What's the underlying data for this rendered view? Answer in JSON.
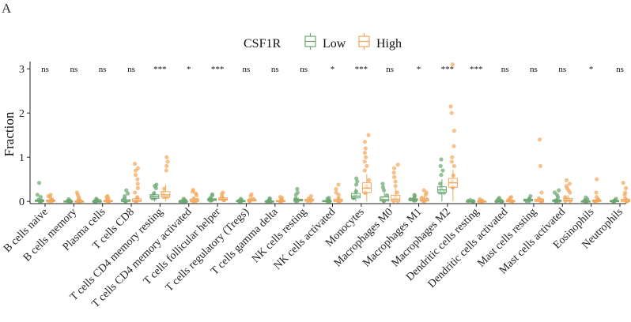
{
  "chart_data": {
    "type": "boxplot",
    "panel_label": "A",
    "legend": {
      "title": "CSF1R",
      "position": "top",
      "entries": [
        {
          "name": "Low",
          "color": "#6aa56e"
        },
        {
          "name": "High",
          "color": "#f2a65a"
        }
      ]
    },
    "ylabel": "Fraction",
    "xlabel": "",
    "ylim": [
      -0.05,
      3.2
    ],
    "yticks": [
      0,
      1,
      2,
      3
    ],
    "categories": [
      "B cells naive",
      "B cells memory",
      "Plasma cells",
      "T cells CD8",
      "T cells CD4 memory resting",
      "T cells CD4 memory activated",
      "T cells follicular helper",
      "T cells regulatory (Tregs)",
      "T cells gamma delta",
      "NK cells resting",
      "NK cells activated",
      "Monocytes",
      "Macrophages M0",
      "Macrophages M1",
      "Macrophages M2",
      "Dendritic cells resting",
      "Dendritic cells activated",
      "Mast cells resting",
      "Mast cells activated",
      "Eosinophils",
      "Neutrophils"
    ],
    "significance": [
      "ns",
      "ns",
      "ns",
      "ns",
      "***",
      "*",
      "***",
      "ns",
      "ns",
      "ns",
      "*",
      "***",
      "ns",
      "*",
      "***",
      "***",
      "ns",
      "ns",
      "ns",
      "*",
      "ns"
    ],
    "series": [
      {
        "name": "Low",
        "color": "#6aa56e",
        "boxes": [
          {
            "q1": 0.0,
            "median": 0.01,
            "q3": 0.03,
            "whisker_high": 0.06,
            "outliers": [
              0.1,
              0.15,
              0.42
            ]
          },
          {
            "q1": 0.0,
            "median": 0.0,
            "q3": 0.01,
            "whisker_high": 0.03,
            "outliers": [
              0.05
            ]
          },
          {
            "q1": 0.0,
            "median": 0.0,
            "q3": 0.01,
            "whisker_high": 0.02,
            "outliers": [
              0.04,
              0.06
            ]
          },
          {
            "q1": 0.0,
            "median": 0.01,
            "q3": 0.04,
            "whisker_high": 0.09,
            "outliers": [
              0.12,
              0.18,
              0.25
            ]
          },
          {
            "q1": 0.07,
            "median": 0.11,
            "q3": 0.15,
            "whisker_high": 0.24,
            "outliers": [
              0.3,
              0.35,
              0.38
            ]
          },
          {
            "q1": 0.0,
            "median": 0.0,
            "q3": 0.01,
            "whisker_high": 0.02,
            "outliers": [
              0.04,
              0.06
            ]
          },
          {
            "q1": 0.02,
            "median": 0.04,
            "q3": 0.06,
            "whisker_high": 0.1,
            "outliers": [
              0.13,
              0.16
            ]
          },
          {
            "q1": 0.0,
            "median": 0.01,
            "q3": 0.02,
            "whisker_high": 0.04,
            "outliers": [
              0.06
            ]
          },
          {
            "q1": 0.0,
            "median": 0.0,
            "q3": 0.01,
            "whisker_high": 0.03,
            "outliers": [
              0.05,
              0.07
            ]
          },
          {
            "q1": 0.01,
            "median": 0.03,
            "q3": 0.05,
            "whisker_high": 0.09,
            "outliers": [
              0.15,
              0.2,
              0.28
            ]
          },
          {
            "q1": 0.0,
            "median": 0.01,
            "q3": 0.02,
            "whisker_high": 0.04,
            "outliers": [
              0.06,
              0.08
            ]
          },
          {
            "q1": 0.08,
            "median": 0.12,
            "q3": 0.18,
            "whisker_high": 0.3,
            "outliers": [
              0.38,
              0.45,
              0.52
            ]
          },
          {
            "q1": 0.01,
            "median": 0.04,
            "q3": 0.1,
            "whisker_high": 0.2,
            "outliers": [
              0.25,
              0.32,
              0.4
            ]
          },
          {
            "q1": 0.02,
            "median": 0.04,
            "q3": 0.06,
            "whisker_high": 0.1,
            "outliers": [
              0.12,
              0.15
            ]
          },
          {
            "q1": 0.2,
            "median": 0.26,
            "q3": 0.33,
            "whisker_high": 0.5,
            "outliers": [
              0.6,
              0.7,
              0.8,
              0.95
            ]
          },
          {
            "q1": 0.0,
            "median": 0.0,
            "q3": 0.01,
            "whisker_high": 0.02,
            "outliers": [
              0.03
            ]
          },
          {
            "q1": 0.0,
            "median": 0.0,
            "q3": 0.01,
            "whisker_high": 0.03,
            "outliers": [
              0.05,
              0.08
            ]
          },
          {
            "q1": 0.01,
            "median": 0.03,
            "q3": 0.05,
            "whisker_high": 0.09,
            "outliers": [
              0.12
            ]
          },
          {
            "q1": 0.0,
            "median": 0.01,
            "q3": 0.03,
            "whisker_high": 0.06,
            "outliers": [
              0.1,
              0.15,
              0.2,
              0.25
            ]
          },
          {
            "q1": 0.0,
            "median": 0.0,
            "q3": 0.01,
            "whisker_high": 0.03,
            "outliers": [
              0.05,
              0.09
            ]
          },
          {
            "q1": 0.0,
            "median": 0.01,
            "q3": 0.02,
            "whisker_high": 0.04,
            "outliers": [
              0.06
            ]
          }
        ]
      },
      {
        "name": "High",
        "color": "#f2a65a",
        "boxes": [
          {
            "q1": 0.0,
            "median": 0.01,
            "q3": 0.03,
            "whisker_high": 0.07,
            "outliers": [
              0.1,
              0.12,
              0.15
            ]
          },
          {
            "q1": 0.0,
            "median": 0.0,
            "q3": 0.01,
            "whisker_high": 0.03,
            "outliers": [
              0.06,
              0.1,
              0.15,
              0.2
            ]
          },
          {
            "q1": 0.0,
            "median": 0.01,
            "q3": 0.02,
            "whisker_high": 0.04,
            "outliers": [
              0.07,
              0.1,
              0.12
            ]
          },
          {
            "q1": 0.0,
            "median": 0.02,
            "q3": 0.06,
            "whisker_high": 0.14,
            "outliers": [
              0.2,
              0.3,
              0.4,
              0.5,
              0.6,
              0.7,
              0.75,
              0.85
            ]
          },
          {
            "q1": 0.1,
            "median": 0.15,
            "q3": 0.22,
            "whisker_high": 0.38,
            "outliers": [
              0.7,
              0.8,
              0.9,
              1.0
            ]
          },
          {
            "q1": 0.0,
            "median": 0.02,
            "q3": 0.05,
            "whisker_high": 0.1,
            "outliers": [
              0.14,
              0.18,
              0.22,
              0.26
            ]
          },
          {
            "q1": 0.03,
            "median": 0.05,
            "q3": 0.08,
            "whisker_high": 0.14,
            "outliers": [
              0.17,
              0.2
            ]
          },
          {
            "q1": 0.01,
            "median": 0.02,
            "q3": 0.04,
            "whisker_high": 0.08,
            "outliers": [
              0.12,
              0.16
            ]
          },
          {
            "q1": 0.0,
            "median": 0.01,
            "q3": 0.02,
            "whisker_high": 0.05,
            "outliers": [
              0.08,
              0.1
            ]
          },
          {
            "q1": 0.01,
            "median": 0.02,
            "q3": 0.05,
            "whisker_high": 0.09,
            "outliers": [
              0.12
            ]
          },
          {
            "q1": 0.0,
            "median": 0.02,
            "q3": 0.05,
            "whisker_high": 0.11,
            "outliers": [
              0.15,
              0.2,
              0.28,
              0.38
            ]
          },
          {
            "q1": 0.2,
            "median": 0.3,
            "q3": 0.42,
            "whisker_high": 0.62,
            "outliers": [
              0.7,
              0.8,
              0.9,
              1.0,
              1.1,
              1.2,
              1.35,
              1.5
            ]
          },
          {
            "q1": 0.01,
            "median": 0.05,
            "q3": 0.14,
            "whisker_high": 0.3,
            "outliers": [
              0.35,
              0.45,
              0.55,
              0.65,
              0.75,
              0.83
            ]
          },
          {
            "q1": 0.01,
            "median": 0.03,
            "q3": 0.06,
            "whisker_high": 0.12,
            "outliers": [
              0.15,
              0.2,
              0.25
            ]
          },
          {
            "q1": 0.32,
            "median": 0.42,
            "q3": 0.52,
            "whisker_high": 0.72,
            "outliers": [
              0.8,
              0.9,
              1.0,
              1.25,
              1.6,
              2.0,
              2.15,
              3.1
            ]
          },
          {
            "q1": 0.0,
            "median": 0.0,
            "q3": 0.01,
            "whisker_high": 0.03,
            "outliers": [
              0.05
            ]
          },
          {
            "q1": 0.0,
            "median": 0.01,
            "q3": 0.02,
            "whisker_high": 0.05,
            "outliers": [
              0.08,
              0.1
            ]
          },
          {
            "q1": 0.0,
            "median": 0.02,
            "q3": 0.05,
            "whisker_high": 0.1,
            "outliers": [
              0.2,
              0.8,
              1.4
            ]
          },
          {
            "q1": 0.01,
            "median": 0.03,
            "q3": 0.07,
            "whisker_high": 0.14,
            "outliers": [
              0.2,
              0.25,
              0.3,
              0.35,
              0.4,
              0.48
            ]
          },
          {
            "q1": 0.0,
            "median": 0.01,
            "q3": 0.03,
            "whisker_high": 0.07,
            "outliers": [
              0.1,
              0.2,
              0.5
            ]
          },
          {
            "q1": 0.0,
            "median": 0.02,
            "q3": 0.05,
            "whisker_high": 0.1,
            "outliers": [
              0.15,
              0.2,
              0.3,
              0.42
            ]
          }
        ]
      }
    ]
  }
}
